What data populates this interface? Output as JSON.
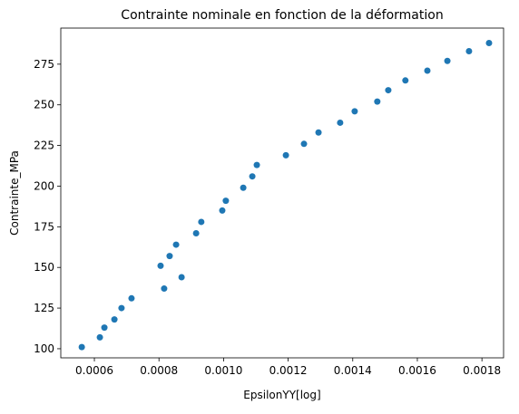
{
  "chart_data": {
    "type": "scatter",
    "title": "Contrainte nominale en fonction de la déformation",
    "x_label": "EpsilonYY[log]",
    "y_label": "Contrainte_MPa",
    "series": [
      {
        "color": "#1f77b4",
        "x": [
          0.000561,
          0.000617,
          0.000631,
          0.000662,
          0.000684,
          0.000715,
          0.000805,
          0.000816,
          0.000833,
          0.000853,
          0.00087,
          0.000915,
          0.000931,
          0.000996,
          0.001007,
          0.001061,
          0.001089,
          0.001103,
          0.001193,
          0.001249,
          0.001294,
          0.001361,
          0.001406,
          0.001476,
          0.00151,
          0.001563,
          0.001631,
          0.001693,
          0.00176,
          0.001822
        ],
        "values": [
          101,
          107,
          113,
          118,
          125,
          131,
          151,
          137,
          157,
          164,
          144,
          171,
          178,
          185,
          191,
          199,
          206,
          213,
          219,
          226,
          233,
          239,
          246,
          252,
          259,
          265,
          271,
          277,
          283,
          288
        ]
      }
    ],
    "xlim": [
      0.000496,
      0.001867
    ],
    "ylim": [
      94.4,
      297.2
    ],
    "xticks": [
      0.0006,
      0.0008,
      {
        "value": 0.001,
        "label": "0.0010"
      },
      0.0012,
      0.0014,
      0.0016,
      0.0018
    ],
    "yticks": [
      100,
      125,
      150,
      175,
      200,
      225,
      250,
      275
    ]
  }
}
